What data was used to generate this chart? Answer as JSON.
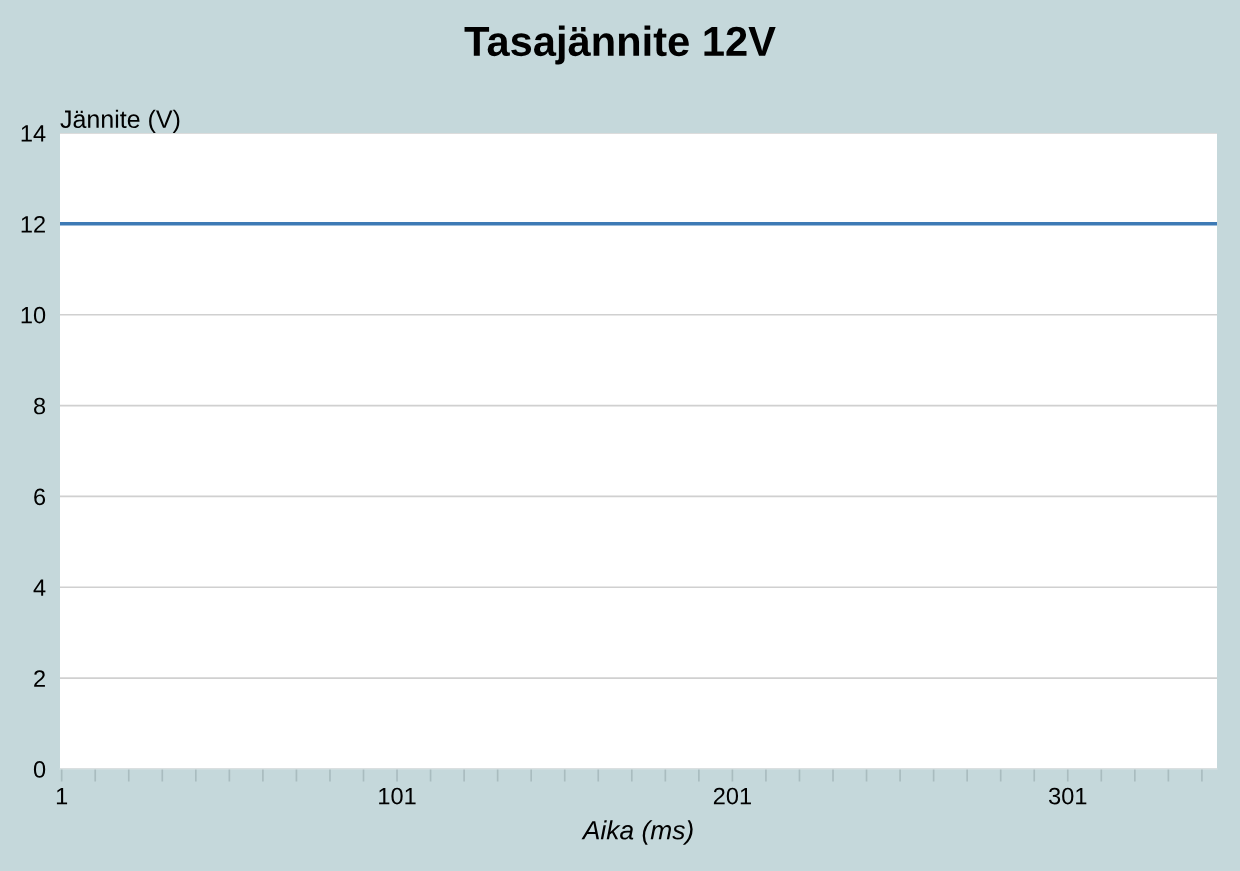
{
  "chart_data": {
    "type": "line",
    "title": "Tasajännite 12V",
    "xlabel": "Aika (ms)",
    "ylabel": "Jännite (V)",
    "x": [
      1,
      345
    ],
    "series": [
      {
        "color": "#3d7ab5",
        "values": [
          12,
          12
        ]
      }
    ],
    "xlim": [
      0.5,
      345.5
    ],
    "xticks": [
      1,
      {
        "value": 11,
        "label": null
      },
      {
        "value": 21,
        "label": null
      },
      {
        "value": 31,
        "label": null
      },
      {
        "value": 41,
        "label": null
      },
      {
        "value": 51,
        "label": null
      },
      {
        "value": 61,
        "label": null
      },
      {
        "value": 71,
        "label": null
      },
      {
        "value": 81,
        "label": null
      },
      {
        "value": 91,
        "label": null
      },
      101,
      {
        "value": 111,
        "label": null
      },
      {
        "value": 121,
        "label": null
      },
      {
        "value": 131,
        "label": null
      },
      {
        "value": 141,
        "label": null
      },
      {
        "value": 151,
        "label": null
      },
      {
        "value": 161,
        "label": null
      },
      {
        "value": 171,
        "label": null
      },
      {
        "value": 181,
        "label": null
      },
      {
        "value": 191,
        "label": null
      },
      201,
      {
        "value": 211,
        "label": null
      },
      {
        "value": 221,
        "label": null
      },
      {
        "value": 231,
        "label": null
      },
      {
        "value": 241,
        "label": null
      },
      {
        "value": 251,
        "label": null
      },
      {
        "value": 261,
        "label": null
      },
      {
        "value": 271,
        "label": null
      },
      {
        "value": 281,
        "label": null
      },
      {
        "value": 291,
        "label": null
      },
      301,
      {
        "value": 311,
        "label": null
      },
      {
        "value": 321,
        "label": null
      },
      {
        "value": 331,
        "label": null
      },
      {
        "value": 341,
        "label": null
      }
    ],
    "ylim": [
      0,
      14
    ],
    "yticks": [
      0,
      2,
      4,
      6,
      8,
      10,
      12,
      14
    ],
    "grid": "y",
    "line_style": "solid"
  }
}
